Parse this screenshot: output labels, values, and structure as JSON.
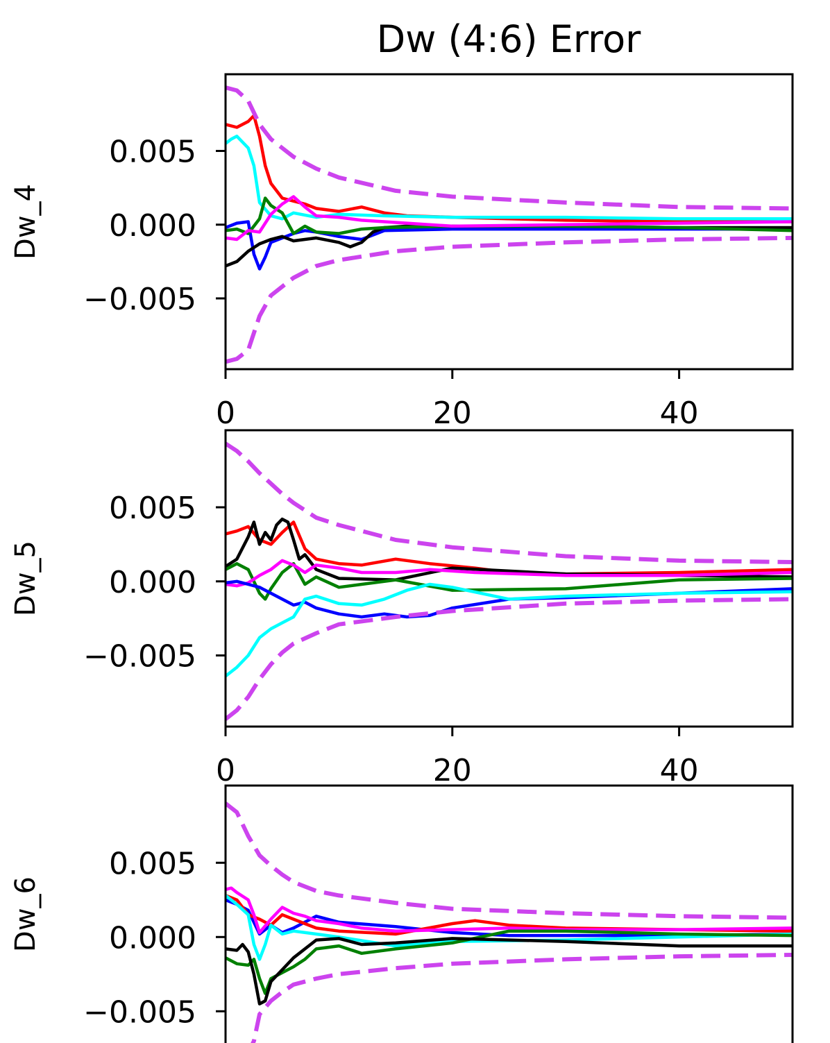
{
  "figure": {
    "title": "Dw (4:6) Error"
  },
  "chart_data": [
    {
      "type": "line",
      "ylabel": "Dw_4",
      "xlim": [
        0,
        50
      ],
      "ylim": [
        -0.0098,
        0.0102
      ],
      "xticks": [
        "0",
        "20",
        "40"
      ],
      "yticks": [
        "0.005",
        "0.000",
        "−0.005"
      ],
      "ytick_values": [
        0.005,
        0.0,
        -0.005
      ],
      "grid": false,
      "series": [
        {
          "color": "#ff0000",
          "dashed": false,
          "x": [
            0,
            1,
            2,
            2.5,
            3,
            3.5,
            4,
            5,
            6,
            7,
            8,
            10,
            12,
            14,
            16,
            20,
            25,
            30,
            40,
            50
          ],
          "y": [
            0.0068,
            0.0066,
            0.007,
            0.0074,
            0.006,
            0.004,
            0.0028,
            0.0018,
            0.0016,
            0.0014,
            0.0011,
            0.0009,
            0.0012,
            0.0008,
            0.0006,
            0.0005,
            0.0004,
            0.0003,
            0.0002,
            0.0002
          ]
        },
        {
          "color": "#00ffff",
          "dashed": false,
          "x": [
            0,
            0.5,
            1,
            2,
            2.5,
            3,
            4,
            5,
            6,
            8,
            10,
            14,
            20,
            30,
            40,
            50
          ],
          "y": [
            0.0055,
            0.0058,
            0.006,
            0.0052,
            0.004,
            0.0015,
            0.0006,
            0.0004,
            0.0008,
            0.0005,
            0.0007,
            0.0006,
            0.0005,
            0.0005,
            0.0004,
            0.0004
          ]
        },
        {
          "color": "#0000ff",
          "dashed": false,
          "x": [
            0,
            1,
            2,
            2.5,
            3,
            3.5,
            4,
            5,
            6,
            7,
            8,
            10,
            12,
            14,
            20,
            30,
            40,
            50
          ],
          "y": [
            -0.0002,
            0.0001,
            0.0002,
            -0.002,
            -0.003,
            -0.0022,
            -0.0012,
            -0.0009,
            -0.0006,
            -0.0004,
            -0.0005,
            -0.0008,
            -0.001,
            -0.0004,
            -0.0003,
            -0.0003,
            -0.0003,
            -0.0003
          ]
        },
        {
          "color": "#000000",
          "dashed": false,
          "x": [
            0,
            1,
            2,
            3,
            4,
            5,
            6,
            8,
            10,
            11,
            12,
            13,
            14,
            16,
            20,
            30,
            40,
            50
          ],
          "y": [
            -0.0028,
            -0.0025,
            -0.0018,
            -0.0013,
            -0.001,
            -0.0008,
            -0.0011,
            -0.0009,
            -0.0012,
            -0.0015,
            -0.0012,
            -0.0005,
            -0.0002,
            -0.0001,
            -0.0001,
            -0.0001,
            -0.0002,
            -0.0002
          ]
        },
        {
          "color": "#008000",
          "dashed": false,
          "x": [
            0,
            1,
            2,
            3,
            3.5,
            4,
            5,
            6,
            7,
            8,
            10,
            12,
            14,
            20,
            30,
            40,
            50
          ],
          "y": [
            -0.0004,
            -0.0003,
            -0.0006,
            0.0004,
            0.0018,
            0.0013,
            0.0008,
            -0.0006,
            -0.0001,
            -0.0005,
            -0.0006,
            -0.0003,
            -0.0002,
            -0.0001,
            -0.0001,
            -0.0002,
            -0.0004
          ]
        },
        {
          "color": "#ff00ff",
          "dashed": false,
          "x": [
            0,
            1,
            2,
            3,
            4,
            5,
            6,
            7,
            8,
            10,
            12,
            14,
            16,
            20,
            30,
            40,
            50
          ],
          "y": [
            -0.0009,
            -0.001,
            -0.0004,
            -0.0005,
            0.0007,
            0.0014,
            0.0019,
            0.0012,
            0.0006,
            0.0005,
            0.0003,
            0.0002,
            0.0001,
            -0.0001,
            0.0,
            0.0001,
            0.0002
          ]
        },
        {
          "color": "#cc44ee",
          "dashed": true,
          "x": [
            0,
            1,
            2,
            3,
            4,
            5,
            6,
            8,
            10,
            15,
            20,
            30,
            40,
            50
          ],
          "y": [
            0.0093,
            0.0091,
            0.0084,
            0.0068,
            0.0058,
            0.0052,
            0.0046,
            0.0038,
            0.0032,
            0.0023,
            0.0019,
            0.0015,
            0.0012,
            0.0011
          ]
        },
        {
          "color": "#cc44ee",
          "dashed": true,
          "x": [
            0,
            1,
            2,
            3,
            4,
            5,
            6,
            8,
            10,
            15,
            20,
            30,
            40,
            50
          ],
          "y": [
            -0.0093,
            -0.0091,
            -0.0085,
            -0.0062,
            -0.0048,
            -0.0042,
            -0.0036,
            -0.0028,
            -0.0024,
            -0.0018,
            -0.0015,
            -0.0012,
            -0.001,
            -0.0009
          ]
        }
      ]
    },
    {
      "type": "line",
      "ylabel": "Dw_5",
      "xlim": [
        0,
        50
      ],
      "ylim": [
        -0.0098,
        0.0102
      ],
      "xticks": [
        "0",
        "20",
        "40"
      ],
      "yticks": [
        "0.005",
        "0.000",
        "−0.005"
      ],
      "ytick_values": [
        0.005,
        0.0,
        -0.005
      ],
      "grid": false,
      "series": [
        {
          "color": "#ff0000",
          "dashed": false,
          "x": [
            0,
            1,
            2,
            3,
            4,
            5,
            6,
            7,
            8,
            10,
            12,
            15,
            18,
            22,
            25,
            30,
            40,
            50
          ],
          "y": [
            0.0032,
            0.0034,
            0.0037,
            0.0028,
            0.0025,
            0.0033,
            0.004,
            0.0022,
            0.0015,
            0.0012,
            0.0011,
            0.0015,
            0.0012,
            0.0009,
            0.0006,
            0.0005,
            0.0006,
            0.0008
          ]
        },
        {
          "color": "#000000",
          "dashed": false,
          "x": [
            0,
            1,
            2,
            2.5,
            3,
            3.5,
            4,
            4.5,
            5,
            5.5,
            6,
            6.5,
            7,
            8,
            10,
            15,
            20,
            30,
            40,
            50
          ],
          "y": [
            0.001,
            0.0015,
            0.003,
            0.004,
            0.0025,
            0.0033,
            0.0028,
            0.0038,
            0.0042,
            0.004,
            0.0028,
            0.0015,
            0.0018,
            0.0008,
            0.0002,
            0.0001,
            0.0009,
            0.0005,
            0.0004,
            0.0003
          ]
        },
        {
          "color": "#008000",
          "dashed": false,
          "x": [
            0,
            1,
            2,
            3,
            3.5,
            4,
            5,
            6,
            7,
            8,
            10,
            15,
            20,
            30,
            40,
            50
          ],
          "y": [
            0.0008,
            0.0012,
            0.0008,
            -0.0008,
            -0.0012,
            -0.0005,
            0.0006,
            0.0012,
            -0.0002,
            0.0003,
            -0.0004,
            0.0001,
            -0.0006,
            -0.0005,
            0.0001,
            0.0002
          ]
        },
        {
          "color": "#ff00ff",
          "dashed": false,
          "x": [
            0,
            1,
            2,
            3,
            4,
            5,
            6,
            7,
            8,
            10,
            12,
            15,
            18,
            22,
            30,
            40,
            50
          ],
          "y": [
            -0.0002,
            -0.0003,
            -0.0001,
            0.0004,
            0.0008,
            0.0014,
            0.0011,
            0.0006,
            0.0011,
            0.0009,
            0.0006,
            0.0006,
            0.0008,
            0.0006,
            0.0004,
            0.0004,
            0.0006
          ]
        },
        {
          "color": "#0000ff",
          "dashed": false,
          "x": [
            0,
            1,
            2,
            3,
            4,
            5,
            6,
            7,
            8,
            10,
            12,
            14,
            16,
            18,
            20,
            25,
            30,
            40,
            50
          ],
          "y": [
            -0.0001,
            0.0,
            -0.0002,
            -0.0004,
            -0.0008,
            -0.0012,
            -0.0016,
            -0.0014,
            -0.0018,
            -0.0022,
            -0.0024,
            -0.0022,
            -0.0024,
            -0.0023,
            -0.0018,
            -0.0012,
            -0.0011,
            -0.0008,
            -0.0005
          ]
        },
        {
          "color": "#00ffff",
          "dashed": false,
          "x": [
            0,
            1,
            2,
            3,
            4,
            5,
            6,
            7,
            8,
            10,
            12,
            14,
            16,
            18,
            20,
            25,
            30,
            40,
            50
          ],
          "y": [
            -0.0064,
            -0.0058,
            -0.005,
            -0.0038,
            -0.0032,
            -0.0028,
            -0.0024,
            -0.0012,
            -0.001,
            -0.0015,
            -0.0016,
            -0.0012,
            -0.0006,
            -0.0002,
            -0.0004,
            -0.0012,
            -0.001,
            -0.0008,
            -0.0007
          ]
        },
        {
          "color": "#cc44ee",
          "dashed": true,
          "x": [
            0,
            1,
            2,
            3,
            4,
            5,
            6,
            8,
            10,
            15,
            20,
            30,
            40,
            50
          ],
          "y": [
            0.0093,
            0.0088,
            0.0081,
            0.0073,
            0.0066,
            0.0059,
            0.0053,
            0.0043,
            0.0038,
            0.0028,
            0.0023,
            0.0017,
            0.0014,
            0.0013
          ]
        },
        {
          "color": "#cc44ee",
          "dashed": true,
          "x": [
            0,
            1,
            2,
            3,
            4,
            5,
            6,
            8,
            10,
            15,
            20,
            30,
            40,
            50
          ],
          "y": [
            -0.0093,
            -0.0087,
            -0.0078,
            -0.0066,
            -0.0056,
            -0.0048,
            -0.0042,
            -0.0035,
            -0.0029,
            -0.0024,
            -0.002,
            -0.0015,
            -0.0013,
            -0.0012
          ]
        }
      ]
    },
    {
      "type": "line",
      "ylabel": "Dw_6",
      "xlim": [
        0,
        50
      ],
      "ylim": [
        -0.0098,
        0.0102
      ],
      "xticks": [],
      "yticks": [
        "0.005",
        "0.000",
        "−0.005"
      ],
      "ytick_values": [
        0.005,
        0.0,
        -0.005
      ],
      "grid": false,
      "series": [
        {
          "color": "#0000ff",
          "dashed": false,
          "x": [
            0,
            1,
            2,
            3,
            4,
            5,
            6,
            8,
            10,
            15,
            20,
            25,
            30,
            40,
            50
          ],
          "y": [
            0.0025,
            0.0022,
            0.0018,
            0.0002,
            0.0008,
            0.0003,
            0.0006,
            0.0014,
            0.001,
            0.0007,
            0.0003,
            0.0001,
            0.0001,
            0.0001,
            0.0002
          ]
        },
        {
          "color": "#ff0000",
          "dashed": false,
          "x": [
            0,
            1,
            2,
            3,
            4,
            5,
            6,
            8,
            10,
            15,
            20,
            22,
            25,
            30,
            40,
            50
          ],
          "y": [
            0.0028,
            0.0025,
            0.0015,
            0.0012,
            0.0008,
            0.0015,
            0.0012,
            0.0006,
            0.0004,
            0.0002,
            0.0009,
            0.0011,
            0.0008,
            0.0006,
            0.0005,
            0.0004
          ]
        },
        {
          "color": "#00ffff",
          "dashed": false,
          "x": [
            0,
            1,
            2,
            2.5,
            3,
            3.5,
            4,
            5,
            6,
            8,
            10,
            15,
            20,
            30,
            40,
            50
          ],
          "y": [
            0.0028,
            0.0022,
            0.0015,
            -0.0005,
            -0.0015,
            -0.0005,
            0.0008,
            0.0002,
            0.0004,
            0.0002,
            0.0,
            -0.0006,
            -0.0003,
            -0.0002,
            0.0,
            0.0002
          ]
        },
        {
          "color": "#ff00ff",
          "dashed": false,
          "x": [
            0,
            0.5,
            1,
            2,
            2.5,
            3,
            4,
            4.5,
            5,
            6,
            7,
            8,
            10,
            12,
            15,
            20,
            25,
            30,
            40,
            50
          ],
          "y": [
            0.0032,
            0.0033,
            0.003,
            0.0025,
            0.0015,
            0.0003,
            0.0012,
            0.0016,
            0.002,
            0.0016,
            0.0014,
            0.0011,
            0.0009,
            0.0006,
            0.0004,
            0.0005,
            0.0006,
            0.0005,
            0.0005,
            0.0006
          ]
        },
        {
          "color": "#008000",
          "dashed": false,
          "x": [
            0,
            1,
            2,
            2.5,
            3,
            3.5,
            4,
            5,
            6,
            7,
            8,
            10,
            12,
            15,
            20,
            25,
            30,
            40,
            50
          ],
          "y": [
            -0.0014,
            -0.0018,
            -0.0019,
            -0.0015,
            -0.0028,
            -0.0038,
            -0.0028,
            -0.0024,
            -0.002,
            -0.0015,
            -0.0008,
            -0.0006,
            -0.0011,
            -0.0008,
            -0.0004,
            0.0004,
            0.0004,
            0.0002,
            0.0001
          ]
        },
        {
          "color": "#000000",
          "dashed": false,
          "x": [
            0,
            1,
            1.5,
            2,
            2.5,
            3,
            3.5,
            4,
            5,
            6,
            8,
            10,
            12,
            15,
            20,
            30,
            40,
            50
          ],
          "y": [
            -0.0008,
            -0.0009,
            -0.0005,
            -0.001,
            -0.0025,
            -0.0045,
            -0.0043,
            -0.003,
            -0.0022,
            -0.0014,
            -0.0002,
            -0.0001,
            -0.0005,
            -0.0004,
            -0.0001,
            -0.0003,
            -0.0006,
            -0.0006
          ]
        },
        {
          "color": "#cc44ee",
          "dashed": true,
          "x": [
            0,
            1,
            2,
            3,
            4,
            5,
            6,
            8,
            10,
            15,
            20,
            30,
            40,
            50
          ],
          "y": [
            0.009,
            0.0084,
            0.0068,
            0.0055,
            0.0048,
            0.0042,
            0.0037,
            0.0031,
            0.0028,
            0.0023,
            0.0019,
            0.0016,
            0.0014,
            0.0013
          ]
        },
        {
          "color": "#cc44ee",
          "dashed": true,
          "x": [
            0,
            1,
            2,
            2.5,
            3,
            4,
            5,
            6,
            8,
            10,
            15,
            20,
            30,
            40,
            50
          ],
          "y": [
            -0.0093,
            -0.0088,
            -0.0078,
            -0.007,
            -0.0052,
            -0.0043,
            -0.0037,
            -0.0032,
            -0.0028,
            -0.0025,
            -0.0021,
            -0.0018,
            -0.0015,
            -0.0013,
            -0.0012
          ]
        }
      ]
    }
  ]
}
